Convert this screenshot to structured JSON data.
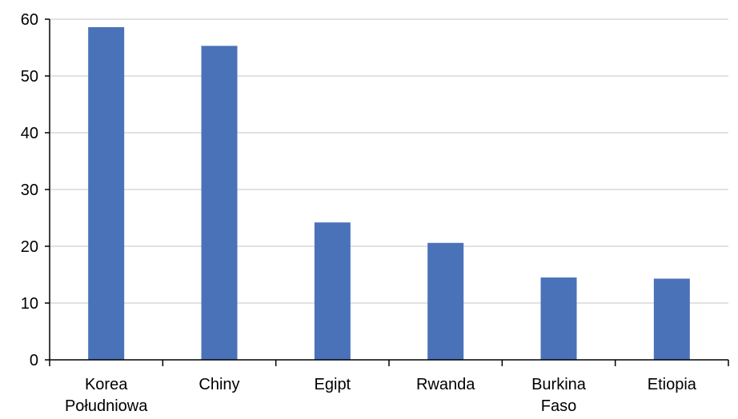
{
  "chart_data": {
    "type": "bar",
    "categories": [
      [
        "Korea",
        "Południowa"
      ],
      [
        "Chiny"
      ],
      [
        "Egipt"
      ],
      [
        "Rwanda"
      ],
      [
        "Burkina",
        "Faso"
      ],
      [
        "Etiopia"
      ]
    ],
    "values": [
      58.6,
      55.3,
      24.2,
      20.6,
      14.5,
      14.3
    ],
    "ylim": [
      0,
      60
    ],
    "yticks": [
      "0",
      "10",
      "20",
      "30",
      "40",
      "50",
      "60"
    ],
    "grid": true,
    "title": "",
    "xlabel": "",
    "ylabel": "",
    "colors": {
      "bar": "#4a72b8",
      "grid": "#d9d9d9",
      "axis": "#000000"
    }
  }
}
